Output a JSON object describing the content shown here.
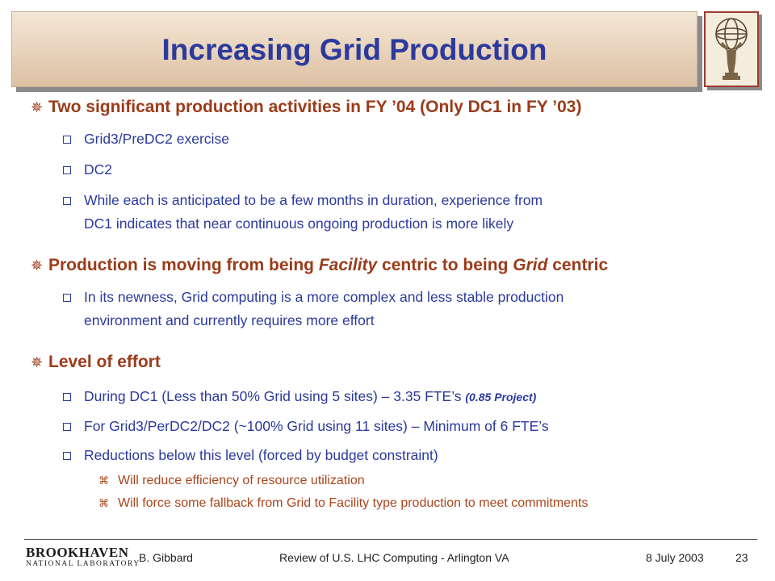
{
  "slide": {
    "title": "Increasing Grid Production"
  },
  "bullets": {
    "b1": {
      "text": "Two significant production activities in FY ’04 (Only DC1 in FY ’03)",
      "sub1": "Grid3/PreDC2 exercise",
      "sub2": "DC2",
      "sub3_line1": "While each is anticipated to be a few months in duration, experience from",
      "sub3_line2": "DC1 indicates that near continuous ongoing production is more likely"
    },
    "b2": {
      "part1": "Production is moving from being ",
      "italic1": "Facility",
      "part2": " centric to being ",
      "italic2": "Grid",
      "part3": " centric",
      "sub1_line1": "In its newness, Grid computing is a more complex and less stable production",
      "sub1_line2": "environment and currently requires more effort"
    },
    "b3": {
      "text": "Level of effort",
      "sub1_main": "During DC1 (Less than 50% Grid using 5 sites) – 3.35 FTE’s ",
      "sub1_project": "(0.85 Project)",
      "sub2": "For Grid3/PerDC2/DC2 (~100% Grid using 11 sites) – Minimum of 6 FTE’s",
      "sub3": "Reductions below this level (forced by budget constraint)",
      "sub3_a": "Will reduce efficiency of resource utilization",
      "sub3_b": "Will force some fallback from Grid to Facility type production to meet commitments"
    }
  },
  "footer": {
    "logo_main": "BROOKHAVEN",
    "logo_sub": "NATIONAL LABORATORY",
    "author": "B. Gibbard",
    "event": "Review of U.S. LHC Computing - Arlington VA",
    "date": "8 July 2003",
    "page": "23"
  },
  "colors": {
    "title": "#2b3a9c",
    "level1": "#9b3b1a",
    "level2": "#2b3a9c",
    "level3": "#a9461c"
  },
  "icons": {
    "level1_bullet": "star-bullet-icon",
    "level2_bullet": "hollow-square-icon",
    "level3_bullet": "cross-mark-icon",
    "corner_logo": "atlas-statue-icon"
  }
}
